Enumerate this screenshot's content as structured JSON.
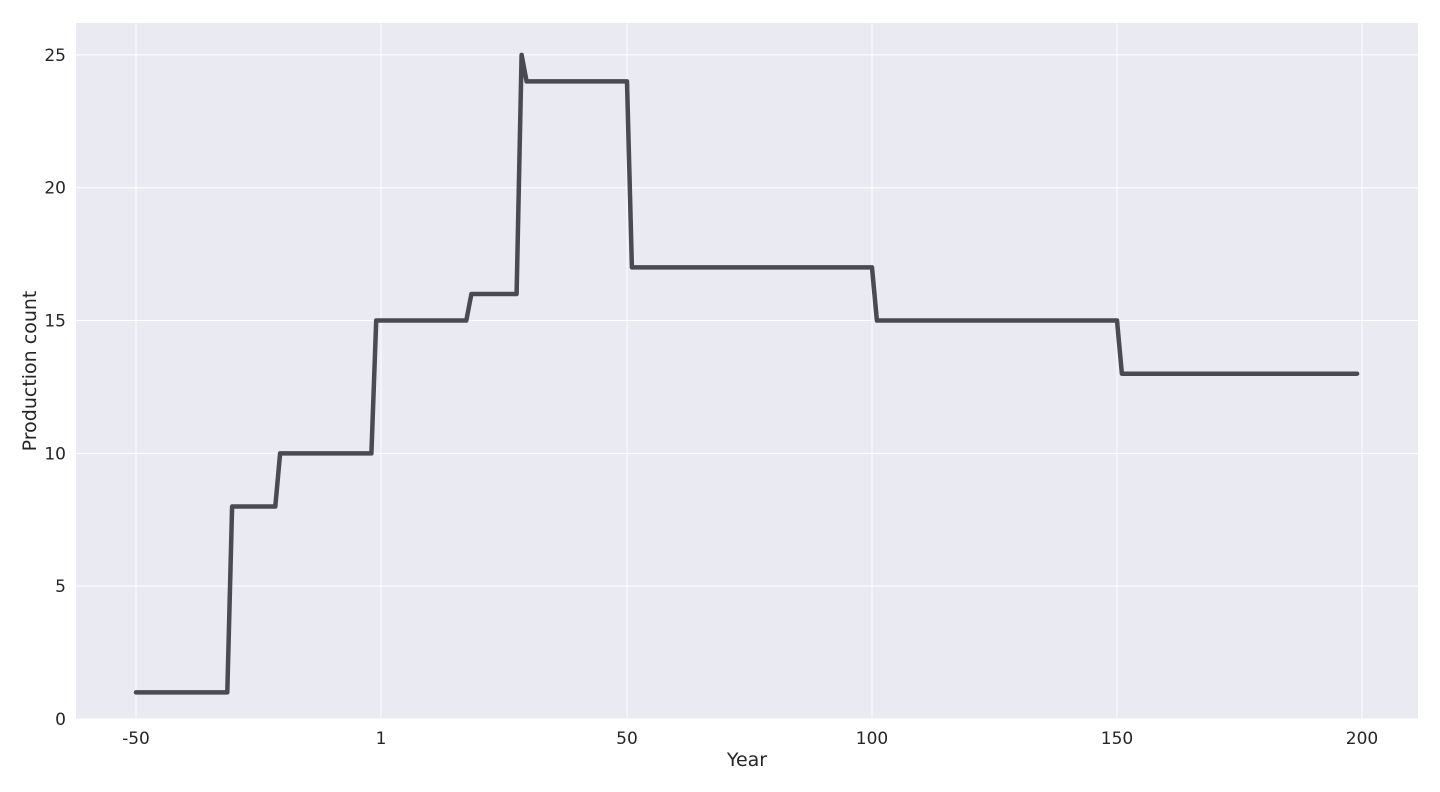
{
  "chart_data": {
    "type": "line",
    "xlabel": "Year",
    "ylabel": "Production count",
    "x_ticks": [
      {
        "value": -50,
        "label": "-50"
      },
      {
        "value": 1,
        "label": "1"
      },
      {
        "value": 50,
        "label": "50"
      },
      {
        "value": 100,
        "label": "100"
      },
      {
        "value": 150,
        "label": "150"
      },
      {
        "value": 200,
        "label": "200"
      }
    ],
    "y_ticks": [
      {
        "value": 0,
        "label": "0"
      },
      {
        "value": 5,
        "label": "5"
      },
      {
        "value": 10,
        "label": "10"
      },
      {
        "value": 15,
        "label": "15"
      },
      {
        "value": 20,
        "label": "20"
      },
      {
        "value": 25,
        "label": "25"
      }
    ],
    "xlim": [
      -62.5,
      212.5
    ],
    "ylim": [
      0,
      26.2
    ],
    "grid": true,
    "colors": {
      "background": "#eaeaf2",
      "grid": "#ffffff",
      "line": "#4a4b52"
    },
    "series": [
      {
        "x": [
          -50,
          -31,
          -30,
          -21,
          -20,
          -1,
          0,
          18,
          19,
          28,
          29,
          30,
          31,
          49,
          50,
          51,
          99,
          100,
          101,
          149,
          150,
          151,
          199
        ],
        "y": [
          1,
          1,
          8,
          8,
          10,
          10,
          15,
          15,
          16,
          16,
          25,
          24,
          24,
          24,
          24,
          17,
          17,
          17,
          15,
          15,
          15,
          13,
          13
        ]
      }
    ]
  }
}
